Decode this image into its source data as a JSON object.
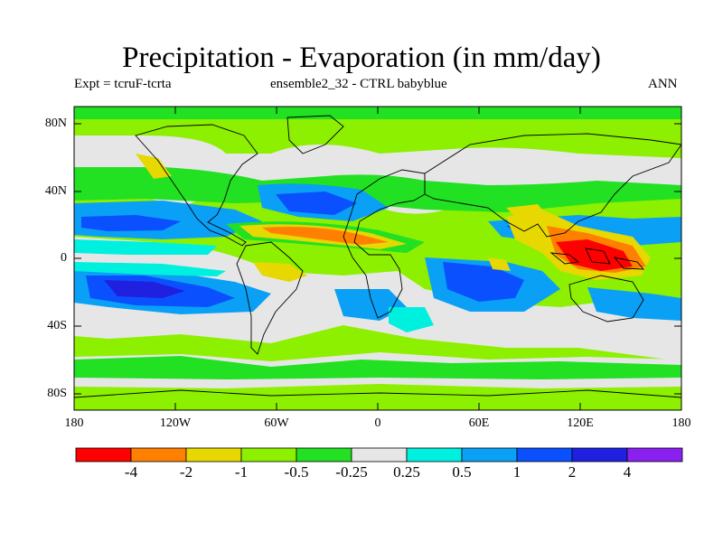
{
  "title": "Precipitation - Evaporation (in mm/day)",
  "subtitle_left": "Expt = tcruF-tcrta",
  "subtitle_center": "ensemble2_32 - CTRL babyblue",
  "subtitle_right": "ANN",
  "lat_labels": [
    "80N",
    "40N",
    "0",
    "40S",
    "80S"
  ],
  "lon_labels": [
    "180",
    "120W",
    "60W",
    "0",
    "60E",
    "120E",
    "180"
  ],
  "colorbar": {
    "colors": [
      "#ff0000",
      "#ff8000",
      "#e6d800",
      "#8cf000",
      "#22e022",
      "#e6e6e6",
      "#00f0e0",
      "#0aa0f5",
      "#0a50ff",
      "#2020e0",
      "#8a20f0"
    ],
    "labels": [
      "-4",
      "-2",
      "-1",
      "-0.5",
      "-0.25",
      "0.25",
      "0.5",
      "1",
      "2",
      "4"
    ]
  }
}
